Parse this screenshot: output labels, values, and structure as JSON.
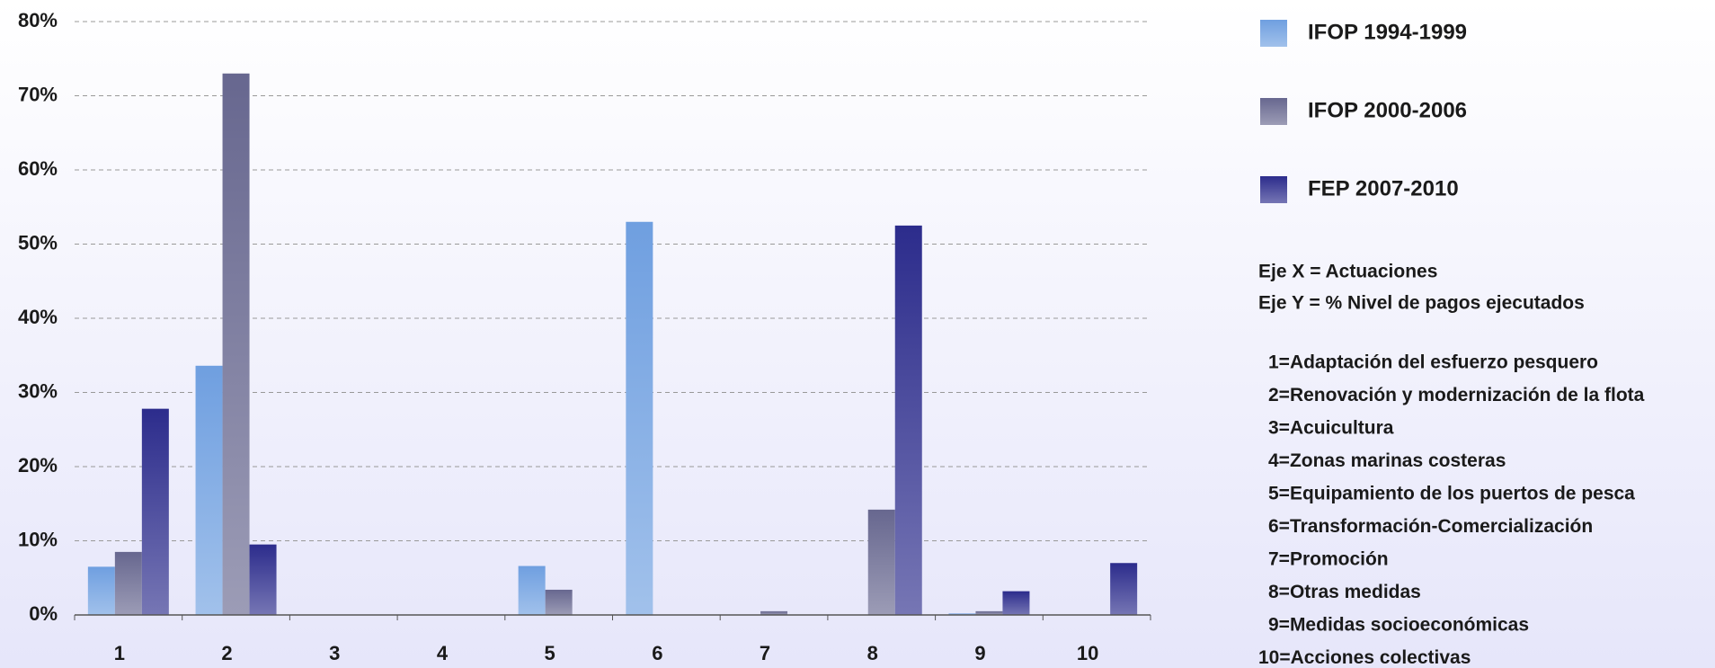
{
  "chart_data": {
    "type": "bar",
    "categories": [
      "1",
      "2",
      "3",
      "4",
      "5",
      "6",
      "7",
      "8",
      "9",
      "10"
    ],
    "series": [
      {
        "name": "IFOP 1994-1999",
        "color": "#6f9fe0",
        "values": [
          6.5,
          33.6,
          0,
          0,
          6.6,
          53,
          0,
          0,
          0.2,
          0
        ]
      },
      {
        "name": "IFOP 2000-2006",
        "color": "#67678f",
        "values": [
          8.5,
          73,
          0,
          0,
          3.4,
          0,
          0.5,
          14.2,
          0.5,
          0
        ]
      },
      {
        "name": "FEP 2007-2010",
        "color": "#2c2c8c",
        "values": [
          27.8,
          9.5,
          0,
          0,
          0,
          0,
          0,
          52.5,
          3.2,
          7
        ]
      }
    ],
    "ylim": [
      0,
      80
    ],
    "yticks": [
      {
        "value": 0,
        "label": "0%"
      },
      {
        "value": 10,
        "label": "10%"
      },
      {
        "value": 20,
        "label": "20%"
      },
      {
        "value": 30,
        "label": "30%"
      },
      {
        "value": 40,
        "label": "40%"
      },
      {
        "value": 50,
        "label": "50%"
      },
      {
        "value": 60,
        "label": "60%"
      },
      {
        "value": 70,
        "label": "70%"
      },
      {
        "value": 80,
        "label": "80%"
      }
    ],
    "grid": true,
    "legend": "right",
    "axis_notes": [
      "Eje X = Actuaciones",
      "Eje Y = % Nivel de pagos ejecutados"
    ],
    "category_descriptions": [
      "1=Adaptación del esfuerzo pesquero",
      "2=Renovación y modernización de la flota",
      "3=Acuicultura",
      "4=Zonas marinas costeras",
      "5=Equipamiento de los puertos de pesca",
      "6=Transformación-Comercialización",
      "7=Promoción",
      "8=Otras medidas",
      "9=Medidas socioeconómicas",
      "10=Acciones colectivas"
    ]
  }
}
